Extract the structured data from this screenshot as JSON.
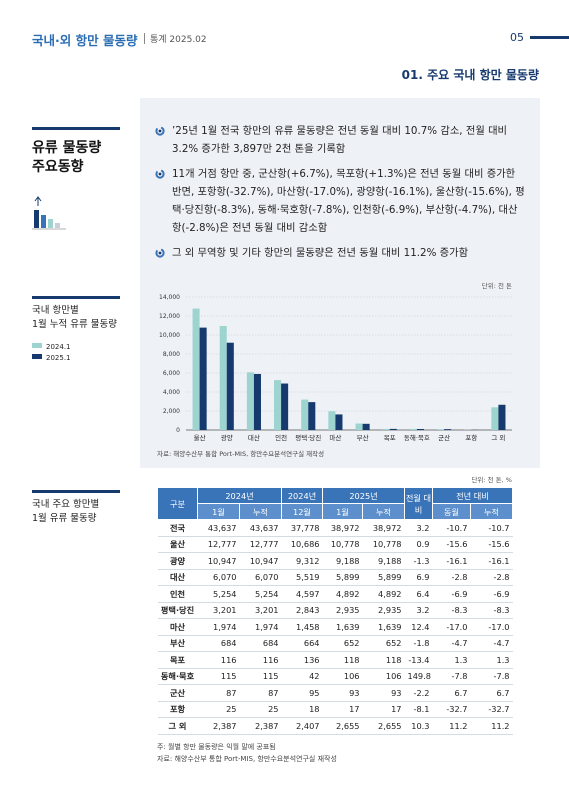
{
  "header": {
    "title": "국내·외 항만 물동량",
    "subtitle": "통계 2025.02",
    "page_number": "05"
  },
  "section_title": "01. 주요 국내 항만 물동량",
  "sidebar": {
    "heading": [
      "유류 물동량",
      "주요동향"
    ],
    "chart_label": [
      "국내 항만별",
      "1월 누적 유류 물동량"
    ],
    "table_label": [
      "국내 주요 항만별",
      "1월 유류 물동량"
    ]
  },
  "bullets": [
    "’25년 1월 전국 항만의 유류 물동량은 전년 동월 대비 10.7% 감소, 전월 대비 3.2% 증가한 3,897만 2천 톤을 기록함",
    "11개 거점 항만 중, 군산항(+6.7%), 목포항(+1.3%)은 전년 동월 대비 증가한 반면, 포항항(-32.7%), 마산항(-17.0%), 광양항(-16.1%), 울산항(-15.6%), 평택·당진항(-8.3%), 동해·묵호항(-7.8%), 인천항(-6.9%), 부산항(-4.7%), 대산항(-2.8%)은 전년 동월 대비 감소함",
    "그 외 무역항 및 기타 항만의 물동량은 전년 동월 대비 11.2% 증가함"
  ],
  "chart_data": {
    "type": "bar",
    "unit": "단위: 천 톤",
    "categories": [
      "울산",
      "광양",
      "대산",
      "인천",
      "평택·당진",
      "마산",
      "부산",
      "목포",
      "동해·묵호",
      "군산",
      "포항",
      "그 외"
    ],
    "series": [
      {
        "name": "2024.1",
        "color": "#9ed4cf",
        "values": [
          12777,
          10947,
          6070,
          5254,
          3201,
          1974,
          684,
          116,
          115,
          87,
          25,
          2387
        ]
      },
      {
        "name": "2025.1",
        "color": "#173a6e",
        "values": [
          10778,
          9188,
          5899,
          4892,
          2935,
          1639,
          652,
          118,
          106,
          93,
          17,
          2655
        ]
      }
    ],
    "ylim": [
      0,
      14000
    ],
    "yticks": [
      0,
      {
        "value": 2000,
        "label": "2,000"
      },
      {
        "value": 4000,
        "label": "4,000"
      },
      {
        "value": 6000,
        "label": "6,000"
      },
      {
        "value": 8000,
        "label": "8,000"
      },
      {
        "value": 10000,
        "label": "10,000"
      },
      {
        "value": 12000,
        "label": "12,000"
      },
      {
        "value": 14000,
        "label": "14,000"
      }
    ],
    "grid": true,
    "source": "자료: 해양수산부 통합 Port-MIS, 항만수요분석연구실 재작성"
  },
  "table": {
    "unit": "단위: 천 톤, %",
    "header_top": [
      "구분",
      "2024년",
      "2024년",
      "2025년",
      "전월 대비",
      "전년 대비"
    ],
    "header_sub": [
      "1월",
      "누적",
      "12월",
      "1월",
      "누적",
      "동월",
      "누적"
    ],
    "rows": [
      [
        "전국",
        "43,637",
        "43,637",
        "37,778",
        "38,972",
        "38,972",
        "3.2",
        "-10.7",
        "-10.7"
      ],
      [
        "울산",
        "12,777",
        "12,777",
        "10,686",
        "10,778",
        "10,778",
        "0.9",
        "-15.6",
        "-15.6"
      ],
      [
        "광양",
        "10,947",
        "10,947",
        "9,312",
        "9,188",
        "9,188",
        "-1.3",
        "-16.1",
        "-16.1"
      ],
      [
        "대산",
        "6,070",
        "6,070",
        "5,519",
        "5,899",
        "5,899",
        "6.9",
        "-2.8",
        "-2.8"
      ],
      [
        "인천",
        "5,254",
        "5,254",
        "4,597",
        "4,892",
        "4,892",
        "6.4",
        "-6.9",
        "-6.9"
      ],
      [
        "평택·당진",
        "3,201",
        "3,201",
        "2,843",
        "2,935",
        "2,935",
        "3.2",
        "-8.3",
        "-8.3"
      ],
      [
        "마산",
        "1,974",
        "1,974",
        "1,458",
        "1,639",
        "1,639",
        "12.4",
        "-17.0",
        "-17.0"
      ],
      [
        "부산",
        "684",
        "684",
        "664",
        "652",
        "652",
        "-1.8",
        "-4.7",
        "-4.7"
      ],
      [
        "목포",
        "116",
        "116",
        "136",
        "118",
        "118",
        "-13.4",
        "1.3",
        "1.3"
      ],
      [
        "동해·묵호",
        "115",
        "115",
        "42",
        "106",
        "106",
        "149.8",
        "-7.8",
        "-7.8"
      ],
      [
        "군산",
        "87",
        "87",
        "95",
        "93",
        "93",
        "-2.2",
        "6.7",
        "6.7"
      ],
      [
        "포항",
        "25",
        "25",
        "18",
        "17",
        "17",
        "-8.1",
        "-32.7",
        "-32.7"
      ],
      [
        "그 외",
        "2,387",
        "2,387",
        "2,407",
        "2,655",
        "2,655",
        "10.3",
        "11.2",
        "11.2"
      ]
    ],
    "notes": [
      "주: 월별 항만 물동량은 익월 말에 공표됨",
      "자료: 해양수산부 통합 Port-MIS, 항만수요분석연구실 재작성"
    ]
  }
}
